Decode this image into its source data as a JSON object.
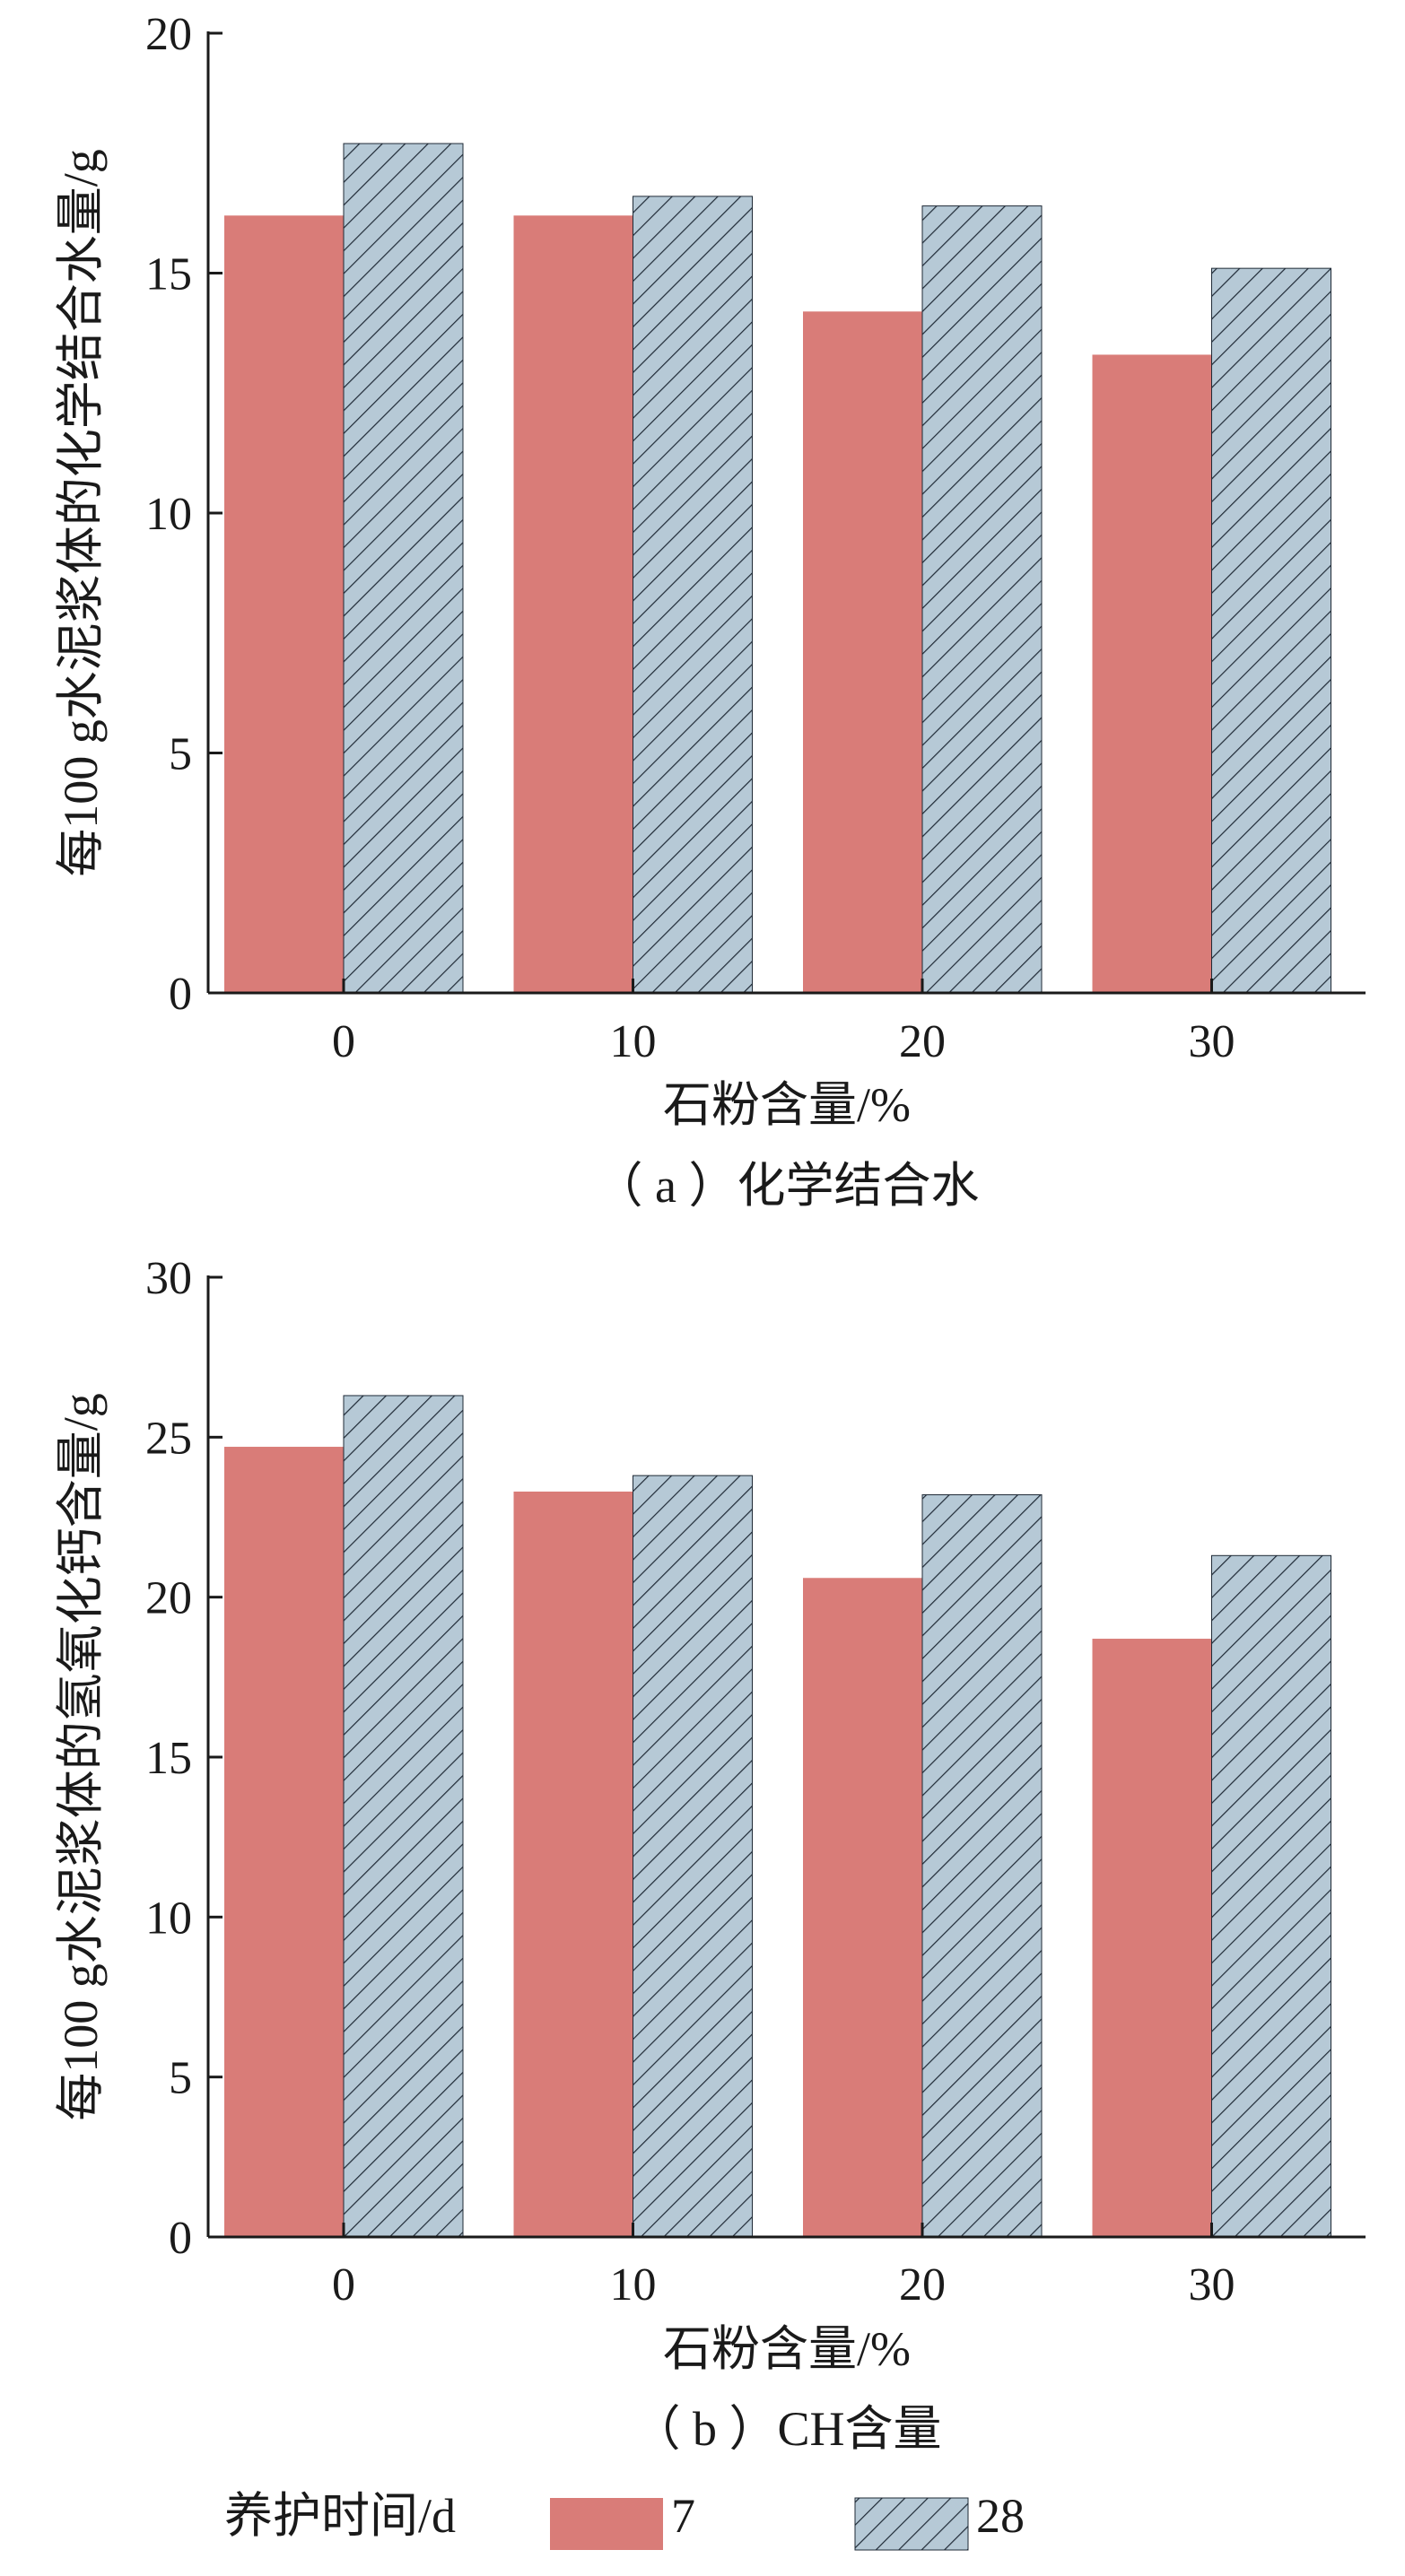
{
  "colors": {
    "series_7": "#d97c78",
    "series_28_fill": "#b6c9d6",
    "series_28_hatch": "#1f2a36",
    "axis": "#1a1a1a"
  },
  "legend": {
    "title": "养护时间/d",
    "items": [
      "7",
      "28"
    ]
  },
  "chart_data": [
    {
      "type": "bar",
      "caption": "（ a ）化学结合水",
      "categories": [
        "0",
        "10",
        "20",
        "30"
      ],
      "xlabel": "石粉含量/%",
      "ylabel": "每100 g水泥浆体的化学结合水量/g",
      "ylim": [
        0,
        20
      ],
      "yticks": [
        0,
        5,
        10,
        15,
        20
      ],
      "grid": false,
      "series": [
        {
          "name": "7",
          "values": [
            16.2,
            16.2,
            14.2,
            13.3
          ]
        },
        {
          "name": "28",
          "values": [
            17.7,
            16.6,
            16.4,
            15.1
          ]
        }
      ]
    },
    {
      "type": "bar",
      "caption": "（ b ）CH含量",
      "categories": [
        "0",
        "10",
        "20",
        "30"
      ],
      "xlabel": "石粉含量/%",
      "ylabel": "每100 g水泥浆体的氢氧化钙含量/g",
      "ylim": [
        0,
        30
      ],
      "yticks": [
        0,
        5,
        10,
        15,
        20,
        25,
        30
      ],
      "grid": false,
      "series": [
        {
          "name": "7",
          "values": [
            24.7,
            23.3,
            20.6,
            18.7
          ]
        },
        {
          "name": "28",
          "values": [
            26.3,
            23.8,
            23.2,
            21.3
          ]
        }
      ]
    }
  ]
}
